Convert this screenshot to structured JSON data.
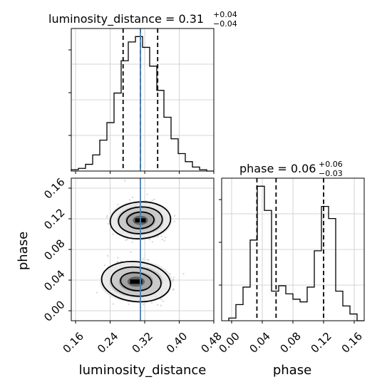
{
  "chart_data": [
    {
      "type": "histogram",
      "panel": "luminosity_distance marginal",
      "title": {
        "main": "luminosity_distance = 0.31",
        "sup": "+0.04",
        "sub": "−0.04"
      },
      "xlim": [
        0.15,
        0.48
      ],
      "x_ticks": [
        0.16,
        0.24,
        0.32,
        0.4,
        0.48
      ],
      "bin_edges": [
        0.15,
        0.1665,
        0.183,
        0.1995,
        0.216,
        0.2325,
        0.249,
        0.2655,
        0.282,
        0.2985,
        0.315,
        0.3315,
        0.348,
        0.3645,
        0.381,
        0.3975,
        0.414,
        0.4305,
        0.447,
        0.4635,
        0.48
      ],
      "counts": [
        1,
        2,
        5,
        12,
        23,
        36,
        58,
        82,
        96,
        100,
        92,
        78,
        60,
        40,
        24,
        13,
        7,
        3,
        1,
        0
      ],
      "quantiles": [
        0.27,
        0.31,
        0.35
      ],
      "truth": 0.31,
      "grid": true
    },
    {
      "type": "histogram",
      "panel": "phase marginal",
      "title": {
        "main": "phase = 0.06",
        "sup": "+0.06",
        "sub": "−0.03"
      },
      "xlim": [
        -0.013,
        0.173
      ],
      "x_ticks": [
        0.0,
        0.04,
        0.08,
        0.12,
        0.16
      ],
      "xlabel": "phase",
      "bin_edges": [
        -0.0037,
        0.0056,
        0.0149,
        0.0242,
        0.0335,
        0.0428,
        0.0521,
        0.0614,
        0.0707,
        0.08,
        0.0893,
        0.0986,
        0.1079,
        0.1172,
        0.1265,
        0.1358,
        0.1451,
        0.1544,
        0.1637,
        0.173
      ],
      "counts": [
        2,
        12,
        25,
        60,
        100,
        82,
        22,
        26,
        20,
        16,
        14,
        25,
        52,
        85,
        76,
        22,
        11,
        5,
        0
      ],
      "quantiles": [
        0.033,
        0.058,
        0.12
      ],
      "grid": true
    },
    {
      "type": "2d-density",
      "panel": "phase vs luminosity_distance",
      "xlabel": "luminosity_distance",
      "ylabel": "phase",
      "xlim": [
        0.15,
        0.48
      ],
      "ylim": [
        -0.013,
        0.173
      ],
      "x_ticks": [
        0.16,
        0.24,
        0.32,
        0.4,
        0.48
      ],
      "y_ticks": [
        0.0,
        0.04,
        0.08,
        0.12,
        0.16
      ],
      "modes": [
        {
          "x": 0.31,
          "y": 0.118,
          "sx": 0.035,
          "sy": 0.012,
          "weight": 0.45
        },
        {
          "x": 0.3,
          "y": 0.038,
          "sx": 0.04,
          "sy": 0.013,
          "weight": 0.55
        }
      ],
      "contour_levels": 3,
      "truth": 0.31,
      "grid": true
    }
  ],
  "colors": {
    "truth_line": "#4682b4",
    "hist_line": "#000000",
    "grid": "#c8c8c8",
    "scatter": "#a0a0a0"
  },
  "labels": {
    "x_left": "luminosity_distance",
    "x_right": "phase",
    "y_left": "phase"
  }
}
